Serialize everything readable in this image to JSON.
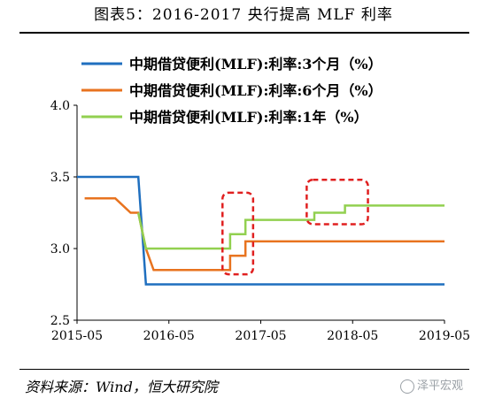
{
  "header": {
    "title": "图表5：2016-2017 央行提高 MLF 利率"
  },
  "footer": {
    "source": "资料来源：Wind，恒大研究院",
    "watermark": "泽平宏观"
  },
  "chart_data": {
    "type": "line",
    "title": "图表5：2016-2017 央行提高 MLF 利率",
    "xlabel": "",
    "ylabel": "",
    "xlim": [
      "2015-05",
      "2019-05"
    ],
    "ylim": [
      2.5,
      4.0
    ],
    "x_ticks": [
      "2015-05",
      "2016-05",
      "2017-05",
      "2018-05",
      "2019-05"
    ],
    "y_ticks": [
      "2.5",
      "3.0",
      "3.5",
      "4.0"
    ],
    "grid": false,
    "legend_position": "top",
    "colors": {
      "s3m": "#1f6fbf",
      "s6m": "#e8731f",
      "s1y": "#92d050",
      "highlight": "#e02020"
    },
    "series": [
      {
        "name": "中期借贷便利(MLF):利率:3个月（%）",
        "color": "#1f6fbf",
        "points": [
          [
            "2015-05",
            3.5
          ],
          [
            "2016-01",
            3.5
          ],
          [
            "2016-02",
            2.75
          ],
          [
            "2019-05",
            2.75
          ]
        ]
      },
      {
        "name": "中期借贷便利(MLF):利率:6个月（%）",
        "color": "#e8731f",
        "points": [
          [
            "2015-06",
            3.35
          ],
          [
            "2015-10",
            3.35
          ],
          [
            "2015-12",
            3.25
          ],
          [
            "2016-01",
            3.25
          ],
          [
            "2016-02",
            3.0
          ],
          [
            "2016-03",
            2.85
          ],
          [
            "2017-01",
            2.85
          ],
          [
            "2017-01",
            2.95
          ],
          [
            "2017-03",
            2.95
          ],
          [
            "2017-03",
            3.05
          ],
          [
            "2019-05",
            3.05
          ]
        ]
      },
      {
        "name": "中期借贷便利(MLF):利率:1年（%）",
        "color": "#92d050",
        "points": [
          [
            "2016-01",
            3.25
          ],
          [
            "2016-02",
            3.0
          ],
          [
            "2017-01",
            3.0
          ],
          [
            "2017-01",
            3.1
          ],
          [
            "2017-03",
            3.1
          ],
          [
            "2017-03",
            3.2
          ],
          [
            "2017-12",
            3.2
          ],
          [
            "2017-12",
            3.25
          ],
          [
            "2018-04",
            3.25
          ],
          [
            "2018-04",
            3.3
          ],
          [
            "2019-05",
            3.3
          ]
        ]
      }
    ],
    "annotations": [
      {
        "type": "dashed-box",
        "color": "#e02020",
        "x_range": [
          "2016-12",
          "2017-04"
        ],
        "y_range": [
          2.82,
          3.39
        ]
      },
      {
        "type": "dashed-box",
        "color": "#e02020",
        "x_range": [
          "2017-11",
          "2018-07"
        ],
        "y_range": [
          3.17,
          3.48
        ]
      }
    ]
  }
}
